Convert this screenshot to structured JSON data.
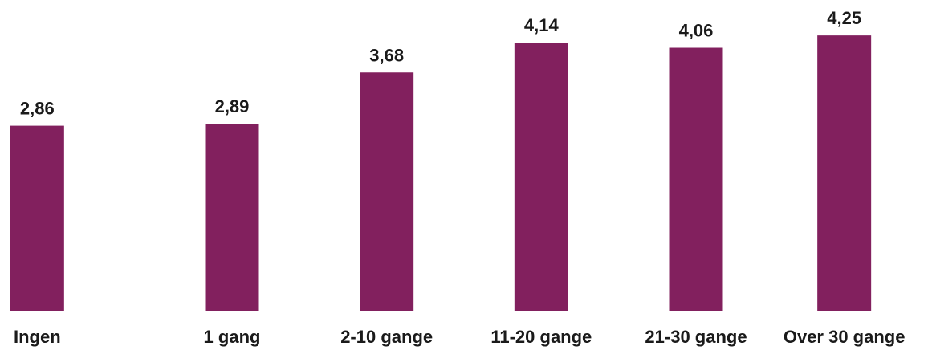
{
  "chart_data": {
    "type": "bar",
    "categories": [
      "Ingen",
      "1 gang",
      "2-10 gange",
      "11-20 gange",
      "21-30 gange",
      "Over 30 gange"
    ],
    "values": [
      2.86,
      2.89,
      3.68,
      4.14,
      4.06,
      4.25
    ],
    "value_labels": [
      "2,86",
      "2,89",
      "3,68",
      "4,14",
      "4,06",
      "4,25"
    ],
    "bar_color": "#82205e",
    "ylim": [
      0,
      4.4
    ],
    "grid": false,
    "legend": "none"
  }
}
